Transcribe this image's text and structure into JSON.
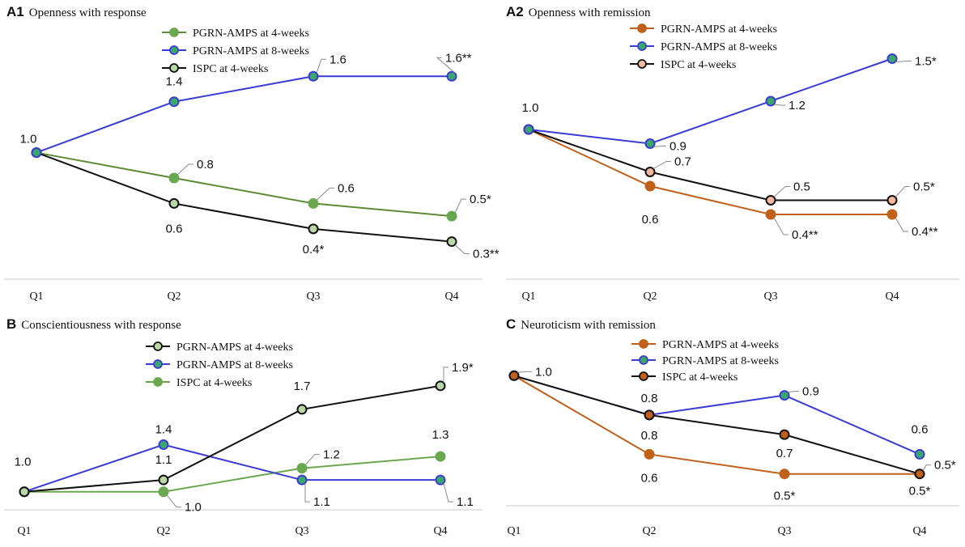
{
  "chart_data": [
    {
      "type": "line",
      "letter": "A1",
      "title": "Openness with response",
      "categories": [
        "Q1",
        "Q2",
        "Q3",
        "Q4"
      ],
      "ylim": [
        0.1,
        1.85
      ],
      "series": [
        {
          "name": "PGRN-AMPS at 4-weeks",
          "color": "#5e8a34",
          "marker_fill": "#6aa84f",
          "marker_edge": "#6aa84f",
          "values": [
            1.0,
            0.8,
            0.6,
            0.5
          ],
          "labels": [
            "",
            "0.8",
            "0.6",
            "0.5*"
          ]
        },
        {
          "name": "PGRN-AMPS at 8-weeks",
          "color": "#3b3bd6",
          "marker_fill": "#3aa86b",
          "marker_edge": "#3b3bd6",
          "values": [
            1.0,
            1.4,
            1.6,
            1.6
          ],
          "labels": [
            "1.0",
            "1.4",
            "1.6",
            "1.6**"
          ]
        },
        {
          "name": "ISPC at 4-weeks",
          "color": "#111111",
          "marker_fill": "#b8d8a8",
          "marker_edge": "#111111",
          "values": [
            1.0,
            0.6,
            0.4,
            0.3
          ],
          "labels": [
            "",
            "0.6",
            "0.4*",
            "0.3**"
          ]
        }
      ]
    },
    {
      "type": "line",
      "letter": "A2",
      "title": "Openness with remission",
      "categories": [
        "Q1",
        "Q2",
        "Q3",
        "Q4"
      ],
      "ylim": [
        0.2,
        1.6
      ],
      "series": [
        {
          "name": "PGRN-AMPS at 4-weeks",
          "color": "#c0601a",
          "marker_fill": "#c0601a",
          "marker_edge": "#c0601a",
          "values": [
            1.0,
            0.6,
            0.4,
            0.4
          ],
          "labels": [
            "",
            "0.6",
            "0.4**",
            "0.4**"
          ]
        },
        {
          "name": "PGRN-AMPS at 8-weeks",
          "color": "#3b3bd6",
          "marker_fill": "#3aa86b",
          "marker_edge": "#3b3bd6",
          "values": [
            1.0,
            0.9,
            1.2,
            1.5
          ],
          "labels": [
            "1.0",
            "0.9",
            "1.2",
            "1.5*"
          ]
        },
        {
          "name": "ISPC at 4-weeks",
          "color": "#111111",
          "marker_fill": "#f4b8a0",
          "marker_edge": "#111111",
          "values": [
            1.0,
            0.7,
            0.5,
            0.5
          ],
          "labels": [
            "",
            "0.7",
            "0.5",
            "0.5*"
          ]
        }
      ]
    },
    {
      "type": "line",
      "letter": "B",
      "title": "Conscientiousness with response",
      "categories": [
        "Q1",
        "Q2",
        "Q3",
        "Q4"
      ],
      "ylim": [
        0.95,
        2.05
      ],
      "series": [
        {
          "name": "PGRN-AMPS at 4-weeks",
          "color": "#111111",
          "marker_fill": "#b8d8a8",
          "marker_edge": "#111111",
          "values": [
            1.0,
            1.1,
            1.7,
            1.9
          ],
          "labels": [
            "",
            "1.1",
            "1.7",
            "1.9*"
          ]
        },
        {
          "name": "PGRN-AMPS at 8-weeks",
          "color": "#3b3bd6",
          "marker_fill": "#3aa86b",
          "marker_edge": "#3b3bd6",
          "values": [
            1.0,
            1.4,
            1.1,
            1.1
          ],
          "labels": [
            "1.0",
            "1.4",
            "1.1",
            "1.1"
          ]
        },
        {
          "name": "ISPC at 4-weeks",
          "color": "#6aa84f",
          "marker_fill": "#6aa84f",
          "marker_edge": "#6aa84f",
          "values": [
            1.0,
            1.0,
            1.2,
            1.3
          ],
          "labels": [
            "",
            "1.0",
            "1.2",
            "1.3"
          ]
        }
      ]
    },
    {
      "type": "line",
      "letter": "C",
      "title": "Neuroticism with remission",
      "categories": [
        "Q1",
        "Q2",
        "Q3",
        "Q4"
      ],
      "ylim": [
        0.4,
        1.1
      ],
      "series": [
        {
          "name": "PGRN-AMPS at 4-weeks",
          "color": "#c0601a",
          "marker_fill": "#c0601a",
          "marker_edge": "#c0601a",
          "values": [
            1.0,
            0.6,
            0.5,
            0.5
          ],
          "labels": [
            "",
            "0.6",
            "0.5*",
            "0.5*"
          ]
        },
        {
          "name": "PGRN-AMPS at 8-weeks",
          "color": "#3b3bd6",
          "marker_fill": "#3aa86b",
          "marker_edge": "#3b3bd6",
          "values": [
            1.0,
            0.8,
            0.9,
            0.6
          ],
          "labels": [
            "",
            "0.8",
            "0.9",
            "0.6"
          ]
        },
        {
          "name": "ISPC at 4-weeks",
          "color": "#111111",
          "marker_fill": "#c0601a",
          "marker_edge": "#111111",
          "values": [
            1.0,
            0.8,
            0.7,
            0.5
          ],
          "labels": [
            "1.0",
            "0.8",
            "0.7",
            "0.5*"
          ]
        }
      ]
    }
  ]
}
